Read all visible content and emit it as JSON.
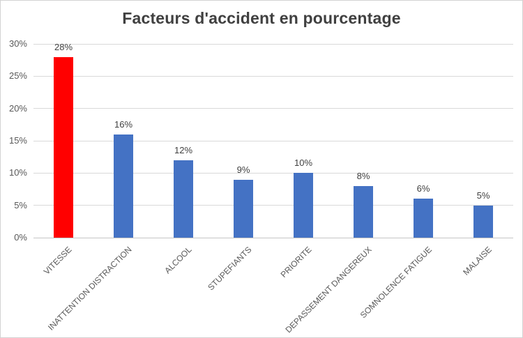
{
  "chart_data": {
    "type": "bar",
    "title": "Facteurs d'accident en pourcentage",
    "categories": [
      "VITESSE",
      "INATTENTION DISTRACTION",
      "ALCOOL",
      "STUPEFIANTS",
      "PRIORITE",
      "DEPASSEMENT DANGEREUX",
      "SOMNOLENCE FATIGUE",
      "MALAISE"
    ],
    "values": [
      28,
      16,
      12,
      9,
      10,
      8,
      6,
      5
    ],
    "data_labels": [
      "28%",
      "16%",
      "12%",
      "9%",
      "10%",
      "8%",
      "6%",
      "5%"
    ],
    "bar_colors": [
      "#ff0000",
      "#4472c4",
      "#4472c4",
      "#4472c4",
      "#4472c4",
      "#4472c4",
      "#4472c4",
      "#4472c4"
    ],
    "xlabel": "",
    "ylabel": "",
    "ylim": [
      0,
      30
    ],
    "ytick_step": 5,
    "ytick_labels": [
      "0%",
      "5%",
      "10%",
      "15%",
      "20%",
      "25%",
      "30%"
    ],
    "grid": true,
    "legend": "none",
    "colors": {
      "highlight_bar": "#ff0000",
      "default_bar": "#4472c4",
      "title_text": "#404040",
      "data_label_text": "#404040",
      "axis_label_text": "#595959",
      "gridline": "#d9d9d9",
      "axis_line": "#c6c6c6",
      "frame_border": "#d2d2d2",
      "background": "#ffffff"
    }
  }
}
